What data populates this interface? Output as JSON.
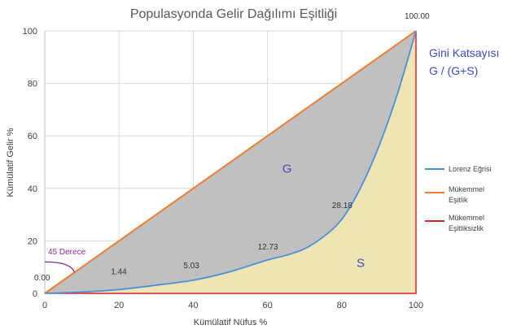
{
  "chart_data": {
    "type": "area",
    "title": "Populasyonda Gelir Dağılımı Eşitliği",
    "xlabel": "Kümülatif Nüfus %",
    "ylabel": "Kümülatif Gelir %",
    "xlim": [
      0,
      100
    ],
    "ylim": [
      0,
      100
    ],
    "x_ticks": [
      "0",
      "20",
      "40",
      "60",
      "80",
      "100"
    ],
    "y_ticks": [
      "0",
      "20",
      "40",
      "60",
      "80",
      "100"
    ],
    "grid": true,
    "legend_position": "right",
    "series": [
      {
        "name": "Lorenz Eğrisi",
        "color": "#4a90d9",
        "x": [
          0,
          10,
          20,
          30,
          40,
          50,
          60,
          65,
          70,
          75,
          80,
          85,
          90,
          95,
          100
        ],
        "y": [
          0,
          0.5,
          1.44,
          3.1,
          5.03,
          8.3,
          12.73,
          14.5,
          17.0,
          21.5,
          28.18,
          40.0,
          56.0,
          76.0,
          100.0
        ]
      },
      {
        "name": "Mükemmel Eşitlik",
        "color": "#ed7d31",
        "x": [
          0,
          100
        ],
        "y": [
          0,
          100
        ]
      },
      {
        "name": "Mükemmel Eşitliksizlik",
        "color": "#e0202a",
        "x": [
          0,
          100,
          100
        ],
        "y": [
          0,
          0,
          100
        ]
      }
    ],
    "data_labels": [
      {
        "x": 0,
        "y": 0,
        "text": "0.00"
      },
      {
        "x": 20,
        "y": 1.44,
        "text": "1.44"
      },
      {
        "x": 40,
        "y": 5.03,
        "text": "5.03"
      },
      {
        "x": 60,
        "y": 12.73,
        "text": "12.73"
      },
      {
        "x": 80,
        "y": 28.18,
        "text": "28.18"
      },
      {
        "x": 100,
        "y": 100.0,
        "text": "100.00"
      }
    ],
    "area_colors": {
      "G": "#c0c0c0",
      "S": "#efe4b4"
    },
    "annotations": {
      "region_g": "G",
      "region_s": "S",
      "gini_title": "Gini Katsayısı",
      "gini_formula": "G / (G+S)",
      "angle_label": "45 Derece"
    }
  }
}
